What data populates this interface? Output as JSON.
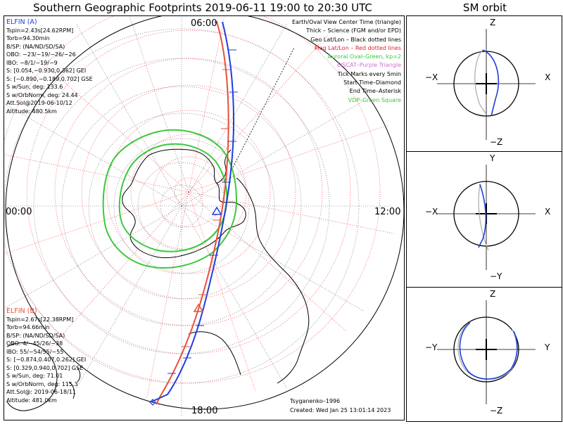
{
  "title": "Southern Geographic Footprints 2019-06-11 19:00 to 20:30 UTC",
  "sm_title": "SM orbit",
  "clock_labels": {
    "top": "06:00",
    "left": "00:00",
    "right": "12:00",
    "bottom": "18:00"
  },
  "elfin_a": {
    "name": "ELFIN (A)",
    "lines": [
      "Tspin=2.43s[24.62RPM]",
      "Torb=94.30min",
      "B/SP: (NA/ND/SD/SA)",
      "OBO: −23/−19/−26/−26",
      "IBO: −8/1/−19/−9",
      "S: [0.054,−0.930,0.362] GEI",
      "S: [−0.890,−0.189,0.702] GSE",
      "S w/Sun, deg: 133.6",
      "S w/OrbNorm, deg: 24.44",
      "Att.Sol@2019-06-10/12",
      "Altitude: 480.5km"
    ],
    "color": "#1f3fdc"
  },
  "elfin_b": {
    "name": "ELFIN (B)",
    "lines": [
      "Tspin=2.67s[22.38RPM]",
      "Torb=94.66min",
      "B/SP: (NA/ND/SD/SA)",
      "OBO: 4/−45/26/−38",
      "IBO: 55/−54/55/−55",
      "S: [−0.874,0.407,0.262] GEI",
      "S: [0.329,0.940,0.702] GSE",
      "S w/Sun, deg: 71.01",
      "S w/OrbNorm, deg: 115.3",
      "Att.Sol@: 2019-06-18/11",
      "Altitude: 481.0km"
    ],
    "color": "#e8503a"
  },
  "legend": [
    {
      "text": "Earth/Oval View Center Time (triangle)",
      "color": "#000000"
    },
    {
      "text": "Thick – Science (FGM and/or EPD)",
      "color": "#000000"
    },
    {
      "text": "Geo Lat/Lon – Black dotted lines",
      "color": "#000000"
    },
    {
      "text": "Mag Lat/Lon – Red dotted lines",
      "color": "#e8202a"
    },
    {
      "text": "Auroral Oval–Green, kp=2",
      "color": "#3cc83c"
    },
    {
      "text": "EISCAT–Purple Triangle",
      "color": "#d070d0"
    },
    {
      "text": "Tick Marks every 5min",
      "color": "#000000"
    },
    {
      "text": "Start Time–Diamond",
      "color": "#000000"
    },
    {
      "text": "End Time–Asterisk",
      "color": "#000000"
    },
    {
      "text": "VDP–Green Square",
      "color": "#3cc83c"
    }
  ],
  "credits": {
    "model": "Tsyganenko–1996",
    "created": "Created: Wed Jan 25 13:01:14 2023"
  },
  "sm_panels": [
    {
      "top": "−Z",
      "bottom": "−Z",
      "left": "−X",
      "right": "X",
      "top_alt": "Z"
    },
    {
      "top": "Y",
      "bottom": "−Y",
      "left": "−X",
      "right": "X"
    },
    {
      "top": "Z",
      "bottom": "−Z",
      "left": "−Y",
      "right": "Y"
    }
  ],
  "colors": {
    "oval": "#3cc83c",
    "geo_grid": "#000000",
    "mag_grid": "#e8202a",
    "orbit_gray": "#aaaaaa"
  }
}
